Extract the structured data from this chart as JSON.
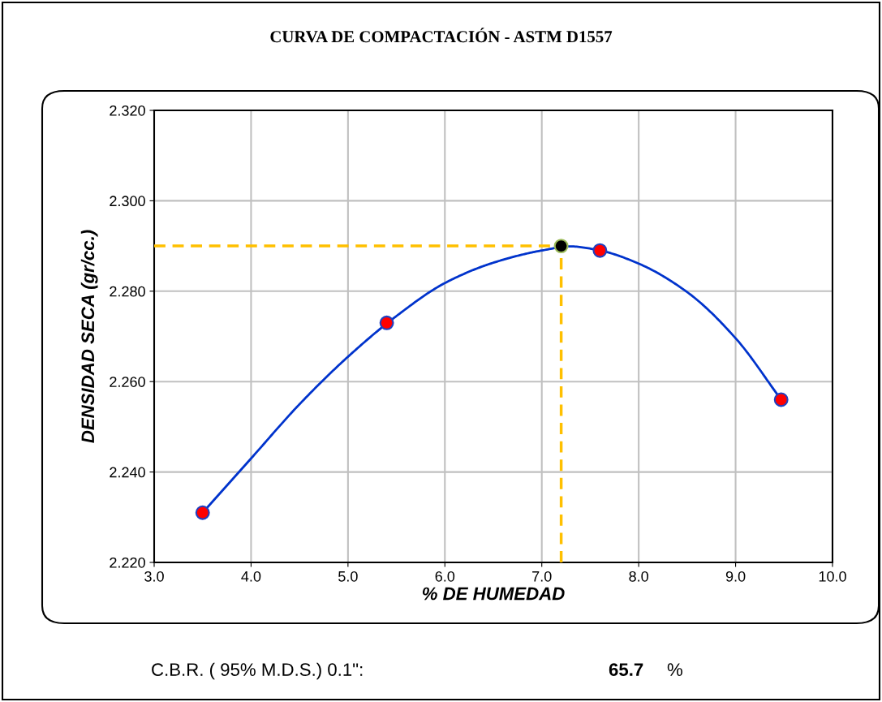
{
  "chart_data": {
    "type": "scatter",
    "title": "CURVA DE COMPACTACIÓN - ASTM D1557",
    "xlabel": "% DE HUMEDAD",
    "ylabel": "DENSIDAD SECA (gr/cc.)",
    "xlim": [
      3.0,
      10.0
    ],
    "xticks": [
      {
        "value": 3,
        "label": "3.0"
      },
      {
        "value": 4,
        "label": "4.0"
      },
      {
        "value": 5,
        "label": "5.0"
      },
      {
        "value": 6,
        "label": "6.0"
      },
      {
        "value": 7,
        "label": "7.0"
      },
      {
        "value": 8,
        "label": "8.0"
      },
      {
        "value": 9,
        "label": "9.0"
      },
      {
        "value": 10,
        "label": "10.0"
      }
    ],
    "ylim": [
      2.22,
      2.32
    ],
    "yticks": [
      {
        "value": 2.22,
        "label": "2.220"
      },
      {
        "value": 2.24,
        "label": "2.240"
      },
      {
        "value": 2.26,
        "label": "2.260"
      },
      {
        "value": 2.28,
        "label": "2.280"
      },
      {
        "value": 2.3,
        "label": "2.300"
      },
      {
        "value": 2.32,
        "label": "2.320"
      }
    ],
    "grid": true,
    "marker": "circle",
    "series": [
      {
        "type": "line",
        "marker": "none",
        "color": "#0033cc",
        "x": [
          3.5,
          4.0,
          4.5,
          5.0,
          5.5,
          6.0,
          6.5,
          7.0,
          7.3,
          7.6,
          8.0,
          8.5,
          9.0,
          9.47
        ],
        "values": [
          2.231,
          2.243,
          2.255,
          2.2655,
          2.2745,
          2.2818,
          2.2863,
          2.289,
          2.2899,
          2.289,
          2.2861,
          2.2798,
          2.2696,
          2.256
        ]
      },
      {
        "color": "#ff0000",
        "x": [
          3.5,
          5.4,
          7.6,
          9.47
        ],
        "values": [
          2.231,
          2.273,
          2.289,
          2.256
        ]
      },
      {
        "color": "#000000",
        "x": [
          7.2
        ],
        "values": [
          2.29
        ]
      }
    ],
    "ref_lines": [
      {
        "axis": "y",
        "value": 2.29,
        "color": "#ffc000",
        "line_style": "dashed"
      },
      {
        "axis": "x",
        "value": 7.2,
        "color": "#ffc000",
        "line_style": "dashed"
      }
    ],
    "annotations": [
      "C.B.R. ( 95% M.D.S.) 0.1\":",
      "65.7",
      "%"
    ]
  }
}
